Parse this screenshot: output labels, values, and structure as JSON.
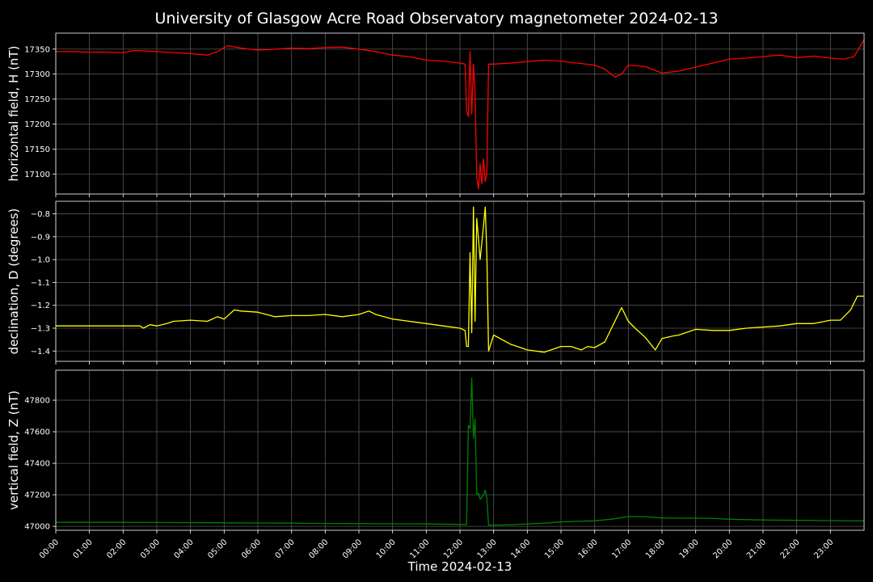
{
  "chart_data": [
    {
      "type": "line",
      "title": "University of Glasgow Acre Road Observatory magnetometer 2024-02-13",
      "ylabel": "horizontal field, H (nT)",
      "color": "#ff0000",
      "ylim": [
        17060,
        17382
      ],
      "yticks": [
        17100,
        17150,
        17200,
        17250,
        17300,
        17350
      ],
      "x": [
        0,
        0.5,
        1,
        1.5,
        2,
        2.3,
        2.5,
        3,
        3.5,
        4,
        4.5,
        4.8,
        5.1,
        5.5,
        6,
        6.5,
        7,
        7.5,
        8,
        8.5,
        9,
        9.5,
        10,
        10.5,
        11,
        11.5,
        12,
        12.15,
        12.2,
        12.25,
        12.3,
        12.35,
        12.4,
        12.45,
        12.5,
        12.55,
        12.6,
        12.65,
        12.7,
        12.75,
        12.8,
        12.85,
        13,
        13.5,
        14,
        14.5,
        15,
        15.5,
        16,
        16.3,
        16.6,
        16.8,
        17,
        17.5,
        18,
        18.5,
        19,
        19.5,
        20,
        20.5,
        21,
        21.5,
        22,
        22.5,
        23,
        23.4,
        23.7,
        23.99
      ],
      "y": [
        17345,
        17345,
        17344,
        17344,
        17343,
        17347,
        17347,
        17345,
        17343,
        17341,
        17338,
        17345,
        17357,
        17352,
        17348,
        17350,
        17352,
        17351,
        17353,
        17354,
        17350,
        17345,
        17338,
        17335,
        17328,
        17326,
        17322,
        17320,
        17225,
        17215,
        17345,
        17220,
        17320,
        17260,
        17095,
        17070,
        17120,
        17080,
        17130,
        17085,
        17100,
        17320,
        17320,
        17322,
        17325,
        17328,
        17326,
        17322,
        17318,
        17310,
        17294,
        17300,
        17318,
        17315,
        17302,
        17306,
        17314,
        17322,
        17330,
        17332,
        17335,
        17338,
        17333,
        17336,
        17332,
        17330,
        17335,
        17368
      ]
    },
    {
      "type": "line",
      "ylabel": "declination, D (degrees)",
      "color": "#ffff00",
      "ylim": [
        -1.445,
        -0.745
      ],
      "yticks": [
        -0.8,
        -0.9,
        -1.0,
        -1.1,
        -1.2,
        -1.3,
        -1.4
      ],
      "x": [
        0,
        0.5,
        1,
        1.5,
        2,
        2.5,
        2.6,
        2.8,
        3,
        3.3,
        3.5,
        4,
        4.5,
        4.8,
        5,
        5.3,
        5.5,
        6,
        6.5,
        7,
        7.5,
        8,
        8.5,
        9,
        9.3,
        9.5,
        10,
        10.5,
        11,
        11.5,
        12,
        12.15,
        12.2,
        12.25,
        12.3,
        12.35,
        12.4,
        12.45,
        12.5,
        12.6,
        12.7,
        12.75,
        12.8,
        12.85,
        13,
        13.5,
        14,
        14.5,
        15,
        15.3,
        15.6,
        15.8,
        16,
        16.3,
        16.5,
        16.8,
        17,
        17.2,
        17.5,
        17.8,
        18,
        18.3,
        18.5,
        19,
        19.5,
        20,
        20.5,
        21,
        21.5,
        22,
        22.5,
        23,
        23.3,
        23.6,
        23.8,
        23.99
      ],
      "y": [
        -1.29,
        -1.29,
        -1.29,
        -1.29,
        -1.29,
        -1.29,
        -1.3,
        -1.285,
        -1.29,
        -1.28,
        -1.27,
        -1.265,
        -1.27,
        -1.25,
        -1.26,
        -1.22,
        -1.225,
        -1.23,
        -1.25,
        -1.245,
        -1.245,
        -1.24,
        -1.25,
        -1.24,
        -1.225,
        -1.24,
        -1.26,
        -1.27,
        -1.28,
        -1.29,
        -1.3,
        -1.31,
        -1.38,
        -1.38,
        -0.97,
        -1.32,
        -0.77,
        -1.27,
        -0.82,
        -1.0,
        -0.85,
        -0.77,
        -0.98,
        -1.4,
        -1.33,
        -1.37,
        -1.395,
        -1.405,
        -1.38,
        -1.38,
        -1.395,
        -1.38,
        -1.385,
        -1.36,
        -1.3,
        -1.21,
        -1.27,
        -1.3,
        -1.34,
        -1.395,
        -1.345,
        -1.335,
        -1.33,
        -1.305,
        -1.31,
        -1.31,
        -1.3,
        -1.295,
        -1.29,
        -1.28,
        -1.28,
        -1.265,
        -1.265,
        -1.22,
        -1.16,
        -1.16
      ]
    },
    {
      "type": "line",
      "ylabel": "vertical field, Z (nT)",
      "color": "#008000",
      "ylim": [
        46975,
        47990
      ],
      "yticks": [
        47000,
        47200,
        47400,
        47600,
        47800
      ],
      "x": [
        0,
        1,
        2,
        3,
        4,
        5,
        6,
        7,
        8,
        9,
        10,
        11,
        12,
        12.2,
        12.25,
        12.3,
        12.35,
        12.4,
        12.45,
        12.5,
        12.55,
        12.6,
        12.7,
        12.75,
        12.8,
        12.85,
        13,
        13.5,
        14,
        14.5,
        15,
        15.5,
        16,
        16.5,
        17,
        17.5,
        18,
        18.5,
        19,
        19.5,
        20,
        21,
        22,
        23,
        23.99
      ],
      "y": [
        47025,
        47025,
        47025,
        47024,
        47023,
        47022,
        47021,
        47020,
        47018,
        47017,
        47016,
        47015,
        47012,
        47012,
        47640,
        47620,
        47940,
        47560,
        47680,
        47200,
        47210,
        47170,
        47200,
        47230,
        47180,
        47008,
        47008,
        47010,
        47015,
        47020,
        47028,
        47032,
        47035,
        47045,
        47062,
        47060,
        47053,
        47052,
        47052,
        47050,
        47045,
        47040,
        47038,
        47036,
        47034
      ]
    }
  ],
  "x_axis": {
    "label": "Time 2024-02-13",
    "xlim": [
      0,
      24
    ],
    "ticks": [
      "00:00",
      "01:00",
      "02:00",
      "03:00",
      "04:00",
      "05:00",
      "06:00",
      "07:00",
      "08:00",
      "09:00",
      "10:00",
      "11:00",
      "12:00",
      "13:00",
      "14:00",
      "15:00",
      "16:00",
      "17:00",
      "18:00",
      "19:00",
      "20:00",
      "21:00",
      "22:00",
      "23:00"
    ]
  },
  "grid": true
}
